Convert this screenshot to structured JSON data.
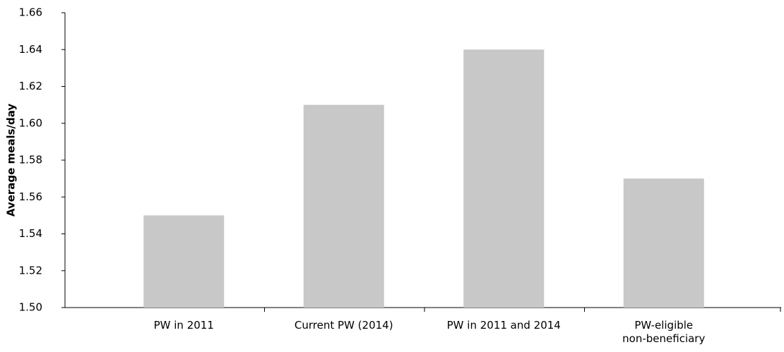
{
  "chart_data": {
    "type": "bar",
    "y_label": "Average meals/day",
    "categories": [
      "PW in 2011",
      "Current PW (2014)",
      "PW in 2011 and 2014",
      "PW-eligible\nnon-beneficiary"
    ],
    "values": [
      1.55,
      1.61,
      1.64,
      1.57
    ],
    "color": "#c8c8c8",
    "ylim": [
      1.5,
      1.66
    ],
    "yticks": [
      {
        "value": 1.5,
        "label": "1.50"
      },
      1.52,
      1.54,
      1.56,
      1.58,
      {
        "value": 1.6,
        "label": "1.60"
      },
      1.62,
      1.64,
      1.66
    ],
    "grid": false
  }
}
